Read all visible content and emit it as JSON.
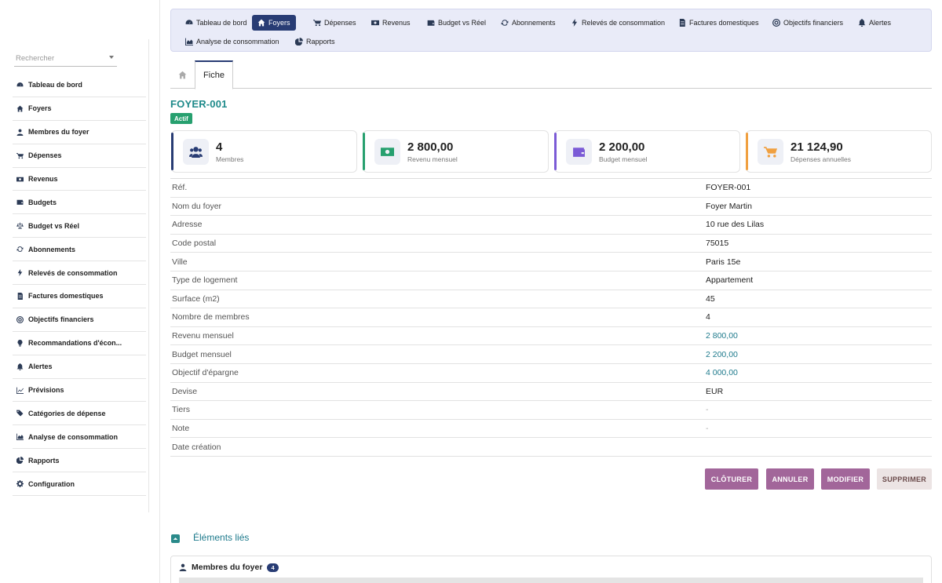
{
  "sidebar": {
    "search_placeholder": "Rechercher",
    "items": [
      {
        "label": "Tableau de bord",
        "icon": "dashboard-icon"
      },
      {
        "label": "Foyers",
        "icon": "home-icon"
      },
      {
        "label": "Membres du foyer",
        "icon": "user-icon"
      },
      {
        "label": "Dépenses",
        "icon": "cart-icon"
      },
      {
        "label": "Revenus",
        "icon": "money-icon"
      },
      {
        "label": "Budgets",
        "icon": "wallet-icon"
      },
      {
        "label": "Budget vs Réel",
        "icon": "balance-icon"
      },
      {
        "label": "Abonnements",
        "icon": "sync-icon"
      },
      {
        "label": "Relevés de consommation",
        "icon": "bolt-icon"
      },
      {
        "label": "Factures domestiques",
        "icon": "invoice-icon"
      },
      {
        "label": "Objectifs financiers",
        "icon": "target-icon"
      },
      {
        "label": "Recommandations d'écon...",
        "icon": "bulb-icon"
      },
      {
        "label": "Alertes",
        "icon": "bell-icon"
      },
      {
        "label": "Prévisions",
        "icon": "chart-line-icon"
      },
      {
        "label": "Catégories de dépense",
        "icon": "tags-icon"
      },
      {
        "label": "Analyse de consommation",
        "icon": "chart-area-icon"
      },
      {
        "label": "Rapports",
        "icon": "pie-icon"
      },
      {
        "label": "Configuration",
        "icon": "gear-icon"
      }
    ]
  },
  "topnav": {
    "items": [
      {
        "label": "Tableau de bord",
        "icon": "dashboard-icon"
      },
      {
        "label": "Foyers",
        "icon": "home-icon",
        "active": true
      },
      {
        "label": "Dépenses",
        "icon": "cart-icon"
      },
      {
        "label": "Revenus",
        "icon": "money-icon"
      },
      {
        "label": "Budget vs Réel",
        "icon": "wallet-icon"
      },
      {
        "label": "Abonnements",
        "icon": "sync-icon"
      },
      {
        "label": "Relevés de consommation",
        "icon": "bolt-icon"
      },
      {
        "label": "Factures domestiques",
        "icon": "invoice-icon"
      },
      {
        "label": "Objectifs financiers",
        "icon": "target-icon"
      },
      {
        "label": "Alertes",
        "icon": "bell-icon"
      },
      {
        "label": "Analyse de consommation",
        "icon": "chart-area-icon"
      },
      {
        "label": "Rapports",
        "icon": "pie-icon"
      }
    ]
  },
  "tabs": {
    "fiche": "Fiche"
  },
  "record": {
    "title": "FOYER-001",
    "status": "Actif"
  },
  "kpis": [
    {
      "value": "4",
      "label": "Membres",
      "icon": "users-icon",
      "accent": "#283c74"
    },
    {
      "value": "2 800,00",
      "label": "Revenu mensuel",
      "icon": "money-icon",
      "accent": "#27a06f"
    },
    {
      "value": "2 200,00",
      "label": "Budget mensuel",
      "icon": "wallet-icon",
      "accent": "#7b5bd6"
    },
    {
      "value": "21 124,90",
      "label": "Dépenses annuelles",
      "icon": "cart-icon",
      "accent": "#f0a040"
    }
  ],
  "details": [
    {
      "k": "Réf.",
      "v": "FOYER-001"
    },
    {
      "k": "Nom du foyer",
      "v": "Foyer Martin"
    },
    {
      "k": "Adresse",
      "v": "10 rue des Lilas"
    },
    {
      "k": "Code postal",
      "v": "75015"
    },
    {
      "k": "Ville",
      "v": "Paris 15e"
    },
    {
      "k": "Type de logement",
      "v": "Appartement"
    },
    {
      "k": "Surface (m2)",
      "v": "45"
    },
    {
      "k": "Nombre de membres",
      "v": "4"
    },
    {
      "k": "Revenu mensuel",
      "v": "2 800,00",
      "style": "link"
    },
    {
      "k": "Budget mensuel",
      "v": "2 200,00",
      "style": "link"
    },
    {
      "k": "Objectif d'épargne",
      "v": "4 000,00",
      "style": "link"
    },
    {
      "k": "Devise",
      "v": "EUR"
    },
    {
      "k": "Tiers",
      "v": "-",
      "style": "muted"
    },
    {
      "k": "Note",
      "v": "-",
      "style": "muted"
    },
    {
      "k": "Date création",
      "v": ""
    }
  ],
  "actions": {
    "close": "CLÔTURER",
    "cancel": "ANNULER",
    "edit": "MODIFIER",
    "delete": "SUPPRIMER"
  },
  "linked": {
    "title": "Éléments liés",
    "members_title": "Membres du foyer",
    "members_count": "4"
  }
}
